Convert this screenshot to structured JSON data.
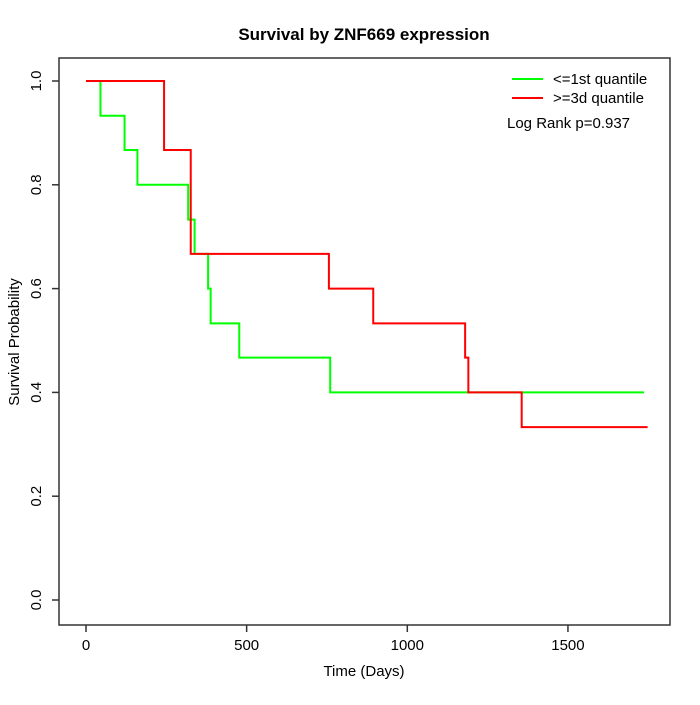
{
  "chart_data": {
    "type": "line",
    "variant": "kaplan-meier-step-survival",
    "title": "Survival by ZNF669 expression",
    "xlabel": "Time (Days)",
    "ylabel": "Survival Probability",
    "xlim": [
      0,
      1815
    ],
    "ylim": [
      0.0,
      1.0
    ],
    "x_ticks": [
      0,
      500,
      1000,
      1500
    ],
    "x_tick_labels": [
      "0",
      "500",
      "1000",
      "1500"
    ],
    "y_ticks": [
      0.0,
      0.2,
      0.4,
      0.6,
      0.8,
      1.0
    ],
    "y_tick_labels": [
      "0.0",
      "0.2",
      "0.4",
      "0.6",
      "0.8",
      "1.0"
    ],
    "grid": false,
    "legend_position": "top-right",
    "annotation": "Log Rank p=0.937",
    "series": [
      {
        "name": "<=1st quantile",
        "color": "#00ff00",
        "step_points": [
          [
            0,
            1.0
          ],
          [
            45,
            0.933
          ],
          [
            120,
            0.867
          ],
          [
            160,
            0.8
          ],
          [
            318,
            0.733
          ],
          [
            338,
            0.667
          ],
          [
            380,
            0.6
          ],
          [
            388,
            0.533
          ],
          [
            477,
            0.467
          ],
          [
            760,
            0.4
          ],
          [
            1737,
            0.4
          ]
        ]
      },
      {
        "name": ">=3d quantile",
        "color": "#ff0000",
        "step_points": [
          [
            0,
            1.0
          ],
          [
            243,
            0.867
          ],
          [
            326,
            0.667
          ],
          [
            756,
            0.6
          ],
          [
            894,
            0.533
          ],
          [
            1180,
            0.467
          ],
          [
            1190,
            0.4
          ],
          [
            1356,
            0.333
          ],
          [
            1748,
            0.333
          ]
        ]
      }
    ]
  }
}
